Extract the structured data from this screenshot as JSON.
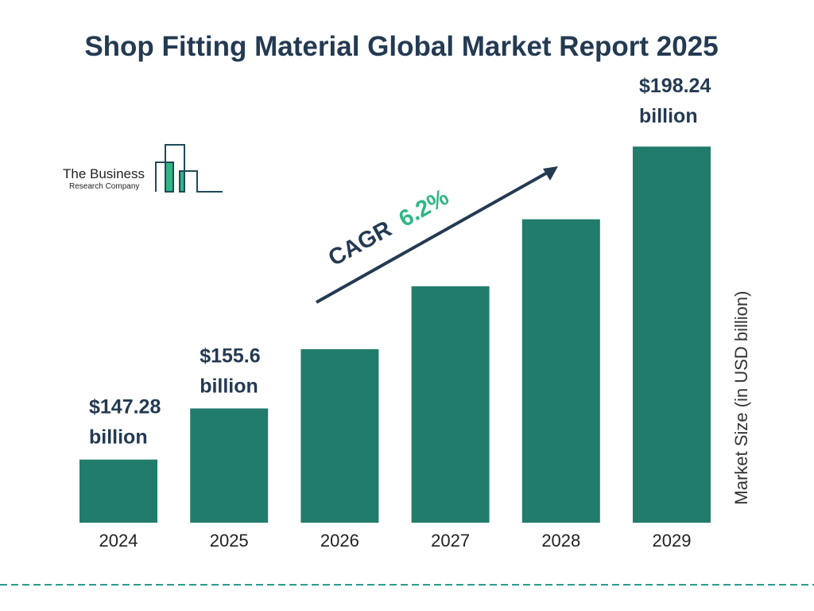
{
  "chart_data": {
    "type": "bar",
    "title": "Shop Fitting Material Global Market Report 2025",
    "categories": [
      "2024",
      "2025",
      "2026",
      "2027",
      "2028",
      "2029"
    ],
    "values": [
      147.28,
      155.6,
      165.25,
      175.5,
      186.4,
      198.24
    ],
    "data_labels": [
      [
        "$147.28",
        "billion"
      ],
      [
        "$155.6",
        "billion"
      ],
      null,
      null,
      null,
      [
        "$198.24",
        "billion"
      ]
    ],
    "ylabel": "Market Size (in USD billion)",
    "xlabel": "",
    "annotation": {
      "prefix": "CAGR",
      "value": "6.2%"
    },
    "grid": false,
    "colors": {
      "bar": "#217c6b",
      "title": "#243a52",
      "cagr": "#2db784"
    }
  },
  "logo": {
    "line1": "The Business",
    "line2": "Research Company"
  }
}
